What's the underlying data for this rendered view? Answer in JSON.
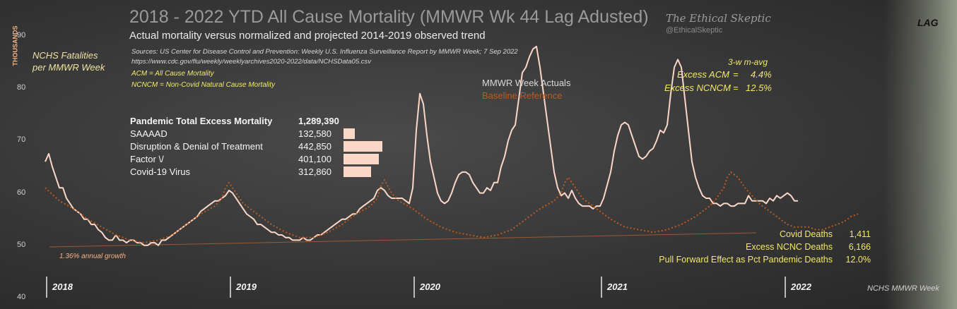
{
  "title": "2018 - 2022 YTD All Cause Mortality (MMWR Wk 44 Lag Adusted)",
  "subtitle": "Actual mortality versus normalized and projected 2014-2019 observed trend",
  "sources_line1": "Sources: US Center for Disease Control and Prevention: Weekly U.S. Influenza Surveillance Report by MMWR Week; 7 Sep 2022",
  "sources_line2": "https://www.cdc.gov/flu/weekly/weeklyarchives2020-2022/data/NCHSData05.csv",
  "acm_def": "ACM = All Cause Mortality",
  "ncncm_def": "NCNCM = Non-Covid Natural Cause Mortality",
  "brand": {
    "name": "The Ethical Skeptic",
    "handle": "@EthicalSkeptic"
  },
  "lag_label": "LAG",
  "y_unit": "THOUSANDS",
  "y_axis_title_line1": "NCHS Fatalities",
  "y_axis_title_line2": "per MMWR Week",
  "x_axis_title": "NCHS MMWR Week",
  "growth_note": "1.36% annual growth",
  "legend": {
    "actual": "MMWR Week Actuals",
    "baseline": "Baseline Reference"
  },
  "moving_avg": {
    "label": "3-w m-avg",
    "excess_acm_label": "Excess ACM",
    "excess_acm_value": "4.4%",
    "excess_ncncm_label": "Excess NCNCM",
    "excess_ncncm_value": "12.5%",
    "eq": "="
  },
  "pandemic_table": {
    "title": "Pandemic Total Excess Mortality",
    "total": "1,289,390",
    "rows": [
      {
        "label": "SAAAAD",
        "value": "132,580",
        "num": 132580
      },
      {
        "label": "Disruption & Denial of Treatment",
        "value": "442,850",
        "num": 442850
      },
      {
        "label": "Factor \\/",
        "value": "401,100",
        "num": 401100
      },
      {
        "label": "Covid-19 Virus",
        "value": "312,860",
        "num": 312860
      }
    ]
  },
  "summary": [
    {
      "label": "Covid Deaths",
      "value": "1,411"
    },
    {
      "label": "Excess NCNC Deaths",
      "value": "6,166"
    },
    {
      "label": "Pull Forward Effect as Pct Pandemic Deaths",
      "value": "12.0%"
    }
  ],
  "colors": {
    "actual": "#fad7c7",
    "baseline": "#c05a1c",
    "highlight": "#f2e86a",
    "accent": "#f4b183"
  },
  "chart_data": {
    "type": "line",
    "ylim": [
      40,
      95
    ],
    "yticks": [
      40,
      50,
      60,
      70,
      80,
      90
    ],
    "x_unit": "week index from start of 2018",
    "year_labels": [
      {
        "label": "2018",
        "x": 0
      },
      {
        "label": "2019",
        "x": 52
      },
      {
        "label": "2020",
        "x": 104
      },
      {
        "label": "2021",
        "x": 157
      },
      {
        "label": "2022",
        "x": 209
      }
    ],
    "series": [
      {
        "name": "MMWR Week Actuals",
        "points": [
          [
            0,
            66
          ],
          [
            1,
            67.5
          ],
          [
            2,
            65
          ],
          [
            3,
            63
          ],
          [
            4,
            61
          ],
          [
            5,
            61
          ],
          [
            6,
            59
          ],
          [
            7,
            58
          ],
          [
            8,
            57
          ],
          [
            9,
            56.5
          ],
          [
            10,
            56
          ],
          [
            11,
            55
          ],
          [
            12,
            55
          ],
          [
            13,
            54
          ],
          [
            14,
            54
          ],
          [
            15,
            53
          ],
          [
            16,
            52.5
          ],
          [
            17,
            51.5
          ],
          [
            18,
            51
          ],
          [
            19,
            51
          ],
          [
            20,
            52
          ],
          [
            21,
            51
          ],
          [
            22,
            51
          ],
          [
            23,
            50.5
          ],
          [
            24,
            51
          ],
          [
            25,
            51
          ],
          [
            26,
            50.5
          ],
          [
            27,
            50.5
          ],
          [
            28,
            50
          ],
          [
            29,
            50
          ],
          [
            30,
            50.5
          ],
          [
            31,
            50.5
          ],
          [
            32,
            50
          ],
          [
            33,
            51
          ],
          [
            34,
            51
          ],
          [
            35,
            51.5
          ],
          [
            36,
            52
          ],
          [
            37,
            52.5
          ],
          [
            38,
            53
          ],
          [
            39,
            53.5
          ],
          [
            40,
            54
          ],
          [
            41,
            54.5
          ],
          [
            42,
            55
          ],
          [
            43,
            55.5
          ],
          [
            44,
            56.5
          ],
          [
            45,
            57
          ],
          [
            46,
            57.5
          ],
          [
            47,
            58
          ],
          [
            48,
            58.5
          ],
          [
            49,
            58.5
          ],
          [
            50,
            59
          ],
          [
            51,
            59.5
          ],
          [
            52,
            60.5
          ],
          [
            53,
            60
          ],
          [
            54,
            59
          ],
          [
            55,
            58
          ],
          [
            56,
            57
          ],
          [
            57,
            56
          ],
          [
            58,
            55.5
          ],
          [
            59,
            55
          ],
          [
            60,
            54
          ],
          [
            61,
            54
          ],
          [
            62,
            53.5
          ],
          [
            63,
            53
          ],
          [
            64,
            52.5
          ],
          [
            65,
            52.5
          ],
          [
            66,
            52
          ],
          [
            67,
            52
          ],
          [
            68,
            51.5
          ],
          [
            69,
            51.5
          ],
          [
            70,
            51
          ],
          [
            71,
            51
          ],
          [
            72,
            51
          ],
          [
            73,
            51.5
          ],
          [
            74,
            51
          ],
          [
            75,
            51
          ],
          [
            76,
            51.5
          ],
          [
            77,
            52
          ],
          [
            78,
            52
          ],
          [
            79,
            52.5
          ],
          [
            80,
            53
          ],
          [
            81,
            53.5
          ],
          [
            82,
            54
          ],
          [
            83,
            54.5
          ],
          [
            84,
            55
          ],
          [
            85,
            55
          ],
          [
            86,
            55.5
          ],
          [
            87,
            56
          ],
          [
            88,
            56
          ],
          [
            89,
            57
          ],
          [
            90,
            57.5
          ],
          [
            91,
            58
          ],
          [
            92,
            58.5
          ],
          [
            93,
            59
          ],
          [
            94,
            60.5
          ],
          [
            95,
            61
          ],
          [
            96,
            60.5
          ],
          [
            97,
            59.5
          ],
          [
            98,
            59
          ],
          [
            99,
            59
          ],
          [
            100,
            59
          ],
          [
            101,
            59
          ],
          [
            102,
            58.5
          ],
          [
            103,
            58
          ],
          [
            104,
            61
          ],
          [
            105,
            72
          ],
          [
            106,
            79
          ],
          [
            107,
            77
          ],
          [
            108,
            71
          ],
          [
            109,
            66
          ],
          [
            110,
            63
          ],
          [
            111,
            60
          ],
          [
            112,
            58.5
          ],
          [
            113,
            58
          ],
          [
            114,
            58.5
          ],
          [
            115,
            60
          ],
          [
            116,
            62
          ],
          [
            117,
            63.5
          ],
          [
            118,
            64
          ],
          [
            119,
            64
          ],
          [
            120,
            63.5
          ],
          [
            121,
            62
          ],
          [
            122,
            61
          ],
          [
            123,
            60
          ],
          [
            124,
            60
          ],
          [
            125,
            61
          ],
          [
            126,
            60.5
          ],
          [
            127,
            62
          ],
          [
            128,
            62
          ],
          [
            129,
            65
          ],
          [
            130,
            67
          ],
          [
            131,
            70
          ],
          [
            132,
            72
          ],
          [
            133,
            73
          ],
          [
            134,
            78
          ],
          [
            135,
            83
          ],
          [
            136,
            84
          ],
          [
            137,
            86
          ],
          [
            138,
            87.5
          ],
          [
            139,
            88
          ],
          [
            140,
            84
          ],
          [
            141,
            79
          ],
          [
            142,
            74
          ],
          [
            143,
            69
          ],
          [
            144,
            64
          ],
          [
            145,
            61
          ],
          [
            146,
            59.5
          ],
          [
            147,
            60
          ],
          [
            148,
            59
          ],
          [
            149,
            60.5
          ],
          [
            150,
            59
          ],
          [
            151,
            58
          ],
          [
            152,
            57.5
          ],
          [
            153,
            57.5
          ],
          [
            154,
            57.5
          ],
          [
            155,
            57
          ],
          [
            156,
            57.5
          ],
          [
            157,
            57.5
          ],
          [
            158,
            59
          ],
          [
            159,
            61.5
          ],
          [
            160,
            64
          ],
          [
            161,
            68
          ],
          [
            162,
            71
          ],
          [
            163,
            73
          ],
          [
            164,
            73.5
          ],
          [
            165,
            73
          ],
          [
            166,
            71
          ],
          [
            167,
            69
          ],
          [
            168,
            67
          ],
          [
            169,
            66.5
          ],
          [
            170,
            67
          ],
          [
            171,
            68
          ],
          [
            172,
            68.5
          ],
          [
            173,
            70
          ],
          [
            174,
            72
          ],
          [
            175,
            71.5
          ],
          [
            176,
            73
          ],
          [
            177,
            79
          ],
          [
            178,
            84
          ],
          [
            179,
            85.5
          ],
          [
            180,
            84
          ],
          [
            181,
            78
          ],
          [
            182,
            72
          ],
          [
            183,
            66
          ],
          [
            184,
            63
          ],
          [
            185,
            61
          ],
          [
            186,
            59.5
          ],
          [
            187,
            59
          ],
          [
            188,
            59
          ],
          [
            189,
            58
          ],
          [
            190,
            58
          ],
          [
            191,
            57.5
          ],
          [
            192,
            58
          ],
          [
            193,
            58
          ],
          [
            194,
            57.5
          ],
          [
            195,
            57.5
          ],
          [
            196,
            58
          ],
          [
            197,
            58
          ],
          [
            198,
            58
          ],
          [
            199,
            59.5
          ],
          [
            200,
            58.5
          ],
          [
            201,
            58.5
          ],
          [
            202,
            58.5
          ],
          [
            203,
            58.5
          ],
          [
            204,
            58
          ],
          [
            205,
            59
          ],
          [
            206,
            58.5
          ],
          [
            207,
            59.5
          ],
          [
            208,
            59
          ],
          [
            209,
            59.5
          ],
          [
            210,
            60
          ],
          [
            211,
            59.5
          ],
          [
            212,
            58.5
          ],
          [
            213,
            58.5
          ]
        ]
      },
      {
        "name": "Baseline Reference",
        "points": [
          [
            0,
            61
          ],
          [
            4,
            58.5
          ],
          [
            8,
            57
          ],
          [
            12,
            55
          ],
          [
            16,
            53.5
          ],
          [
            20,
            52
          ],
          [
            24,
            51
          ],
          [
            28,
            50.5
          ],
          [
            32,
            51
          ],
          [
            36,
            52
          ],
          [
            40,
            54
          ],
          [
            44,
            56
          ],
          [
            48,
            57.5
          ],
          [
            50,
            59
          ],
          [
            51,
            61
          ],
          [
            52,
            62
          ],
          [
            54,
            60
          ],
          [
            56,
            58
          ],
          [
            60,
            56
          ],
          [
            64,
            54
          ],
          [
            68,
            52.5
          ],
          [
            72,
            51.5
          ],
          [
            76,
            51.5
          ],
          [
            80,
            52.5
          ],
          [
            84,
            54
          ],
          [
            88,
            56
          ],
          [
            92,
            57.5
          ],
          [
            94,
            59
          ],
          [
            95,
            61.5
          ],
          [
            96,
            62.5
          ],
          [
            98,
            60
          ],
          [
            100,
            58.5
          ],
          [
            104,
            57
          ],
          [
            108,
            55
          ],
          [
            112,
            53.5
          ],
          [
            116,
            52.5
          ],
          [
            120,
            52
          ],
          [
            124,
            51.5
          ],
          [
            128,
            52
          ],
          [
            132,
            53
          ],
          [
            136,
            55
          ],
          [
            140,
            57
          ],
          [
            144,
            58.5
          ],
          [
            146,
            60
          ],
          [
            147,
            62
          ],
          [
            148,
            63
          ],
          [
            150,
            61
          ],
          [
            152,
            59
          ],
          [
            156,
            57
          ],
          [
            160,
            55
          ],
          [
            164,
            53.5
          ],
          [
            168,
            53
          ],
          [
            172,
            52.5
          ],
          [
            176,
            53
          ],
          [
            180,
            54
          ],
          [
            184,
            55.5
          ],
          [
            188,
            57.5
          ],
          [
            190,
            59
          ],
          [
            192,
            61
          ],
          [
            193,
            63
          ],
          [
            194,
            64
          ],
          [
            196,
            63
          ],
          [
            198,
            61
          ],
          [
            200,
            59.5
          ],
          [
            202,
            58
          ],
          [
            204,
            57
          ],
          [
            206,
            56
          ],
          [
            208,
            55
          ],
          [
            210,
            54
          ],
          [
            212,
            53.5
          ],
          [
            214,
            53.5
          ],
          [
            216,
            53.5
          ],
          [
            218,
            53
          ],
          [
            220,
            53
          ],
          [
            222,
            53.5
          ],
          [
            224,
            54
          ],
          [
            226,
            54.5
          ],
          [
            228,
            55.5
          ],
          [
            230,
            56
          ]
        ]
      }
    ]
  }
}
